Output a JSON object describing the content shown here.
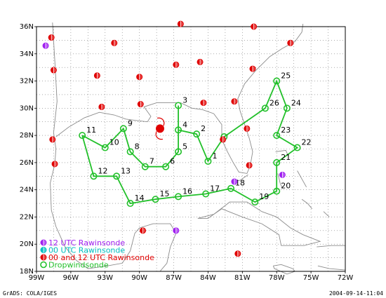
{
  "map": {
    "lon_min": -99,
    "lon_max": -72,
    "lat_min": 18,
    "lat_max": 36,
    "lon_ticks": [
      "99W",
      "96W",
      "93W",
      "90W",
      "87W",
      "84W",
      "81W",
      "78W",
      "75W",
      "72W"
    ],
    "lat_ticks": [
      "18N",
      "20N",
      "22N",
      "24N",
      "26N",
      "28N",
      "30N",
      "32N",
      "34N",
      "36N"
    ]
  },
  "legend": {
    "items": [
      {
        "label": "12 UTC Rawinsonde",
        "color": "#a020f0",
        "icon": "half-filled-circle"
      },
      {
        "label": "00 UTC Rawinsonde",
        "color": "#00bfc0",
        "icon": "half-filled-circle"
      },
      {
        "label": "00 and 12 UTC Rawinsonde",
        "color": "#e00000",
        "icon": "half-filled-circle"
      },
      {
        "label": "Dropwindsonde",
        "color": "#22c02a",
        "icon": "open-circle"
      }
    ]
  },
  "footer": {
    "left": "GrADS: COLA/IGES",
    "right": "2004-09-14-11:04"
  },
  "colors": {
    "coast": "#8c8c8c",
    "grid": "#7a7a7a",
    "track": "#22c02a",
    "red": "#e00000",
    "purple": "#a020f0"
  },
  "dropsondes": [
    {
      "id": "1",
      "lon": -84.0,
      "lat": 26.1
    },
    {
      "id": "2",
      "lon": -85.0,
      "lat": 28.1
    },
    {
      "id": "3",
      "lon": -86.6,
      "lat": 30.2
    },
    {
      "id": "4",
      "lon": -86.6,
      "lat": 28.4
    },
    {
      "id": "5",
      "lon": -86.6,
      "lat": 26.8
    },
    {
      "id": "6",
      "lon": -87.7,
      "lat": 25.7
    },
    {
      "id": "7",
      "lon": -89.5,
      "lat": 25.7
    },
    {
      "id": "8",
      "lon": -90.8,
      "lat": 26.8
    },
    {
      "id": "9",
      "lon": -91.4,
      "lat": 28.5
    },
    {
      "id": "10",
      "lon": -93.0,
      "lat": 27.1
    },
    {
      "id": "11",
      "lon": -95.0,
      "lat": 28.0
    },
    {
      "id": "12",
      "lon": -94.0,
      "lat": 25.0
    },
    {
      "id": "13",
      "lon": -92.0,
      "lat": 25.0
    },
    {
      "id": "14",
      "lon": -90.8,
      "lat": 23.0
    },
    {
      "id": "15",
      "lon": -88.6,
      "lat": 23.3
    },
    {
      "id": "16",
      "lon": -86.6,
      "lat": 23.5
    },
    {
      "id": "17",
      "lon": -84.2,
      "lat": 23.7
    },
    {
      "id": "18",
      "lon": -82.0,
      "lat": 24.1
    },
    {
      "id": "19",
      "lon": -79.9,
      "lat": 23.1
    },
    {
      "id": "20",
      "lon": -78.0,
      "lat": 23.9
    },
    {
      "id": "21",
      "lon": -78.0,
      "lat": 26.0
    },
    {
      "id": "22",
      "lon": -76.2,
      "lat": 27.1
    },
    {
      "id": "23",
      "lon": -78.0,
      "lat": 28.0
    },
    {
      "id": "24",
      "lon": -77.1,
      "lat": 30.0
    },
    {
      "id": "25",
      "lon": -78.0,
      "lat": 32.0
    },
    {
      "id": "26",
      "lon": -79.0,
      "lat": 30.0
    },
    {
      "id": "",
      "lon": -82.6,
      "lat": 27.9
    }
  ],
  "rawinsondes_00_12": [
    {
      "lon": -97.7,
      "lat": 35.2
    },
    {
      "lon": -92.2,
      "lat": 34.8
    },
    {
      "lon": -86.4,
      "lat": 36.2
    },
    {
      "lon": -80.0,
      "lat": 36.0
    },
    {
      "lon": -76.8,
      "lat": 34.8
    },
    {
      "lon": -84.7,
      "lat": 33.4
    },
    {
      "lon": -86.8,
      "lat": 33.2
    },
    {
      "lon": -80.1,
      "lat": 32.9
    },
    {
      "lon": -97.5,
      "lat": 32.8
    },
    {
      "lon": -93.7,
      "lat": 32.4
    },
    {
      "lon": -90.0,
      "lat": 32.3
    },
    {
      "lon": -93.3,
      "lat": 30.1
    },
    {
      "lon": -89.9,
      "lat": 30.3
    },
    {
      "lon": -84.4,
      "lat": 30.4
    },
    {
      "lon": -81.7,
      "lat": 30.5
    },
    {
      "lon": -97.6,
      "lat": 27.7
    },
    {
      "lon": -80.6,
      "lat": 28.5
    },
    {
      "lon": -97.4,
      "lat": 25.9
    },
    {
      "lon": -80.4,
      "lat": 25.8
    },
    {
      "lon": -89.7,
      "lat": 21.0
    },
    {
      "lon": -81.4,
      "lat": 19.3
    },
    {
      "lon": -82.7,
      "lat": 27.7
    }
  ],
  "rawinsondes_12": [
    {
      "lon": -98.2,
      "lat": 34.6
    },
    {
      "lon": -86.8,
      "lat": 21.0
    },
    {
      "lon": -81.7,
      "lat": 24.6
    },
    {
      "lon": -77.5,
      "lat": 25.1
    }
  ],
  "hurricane": {
    "symbol": "hurricane-icon",
    "lon": -88.2,
    "lat": 28.5,
    "color": "#e00000"
  }
}
